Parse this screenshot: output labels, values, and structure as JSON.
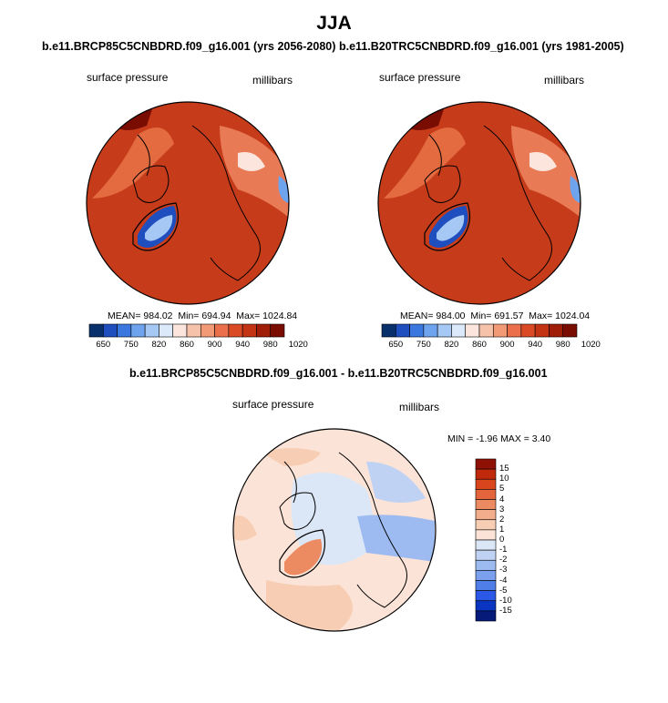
{
  "figure_title": "JJA",
  "panels": [
    {
      "title": "b.e11.BRCP85C5CNBDRD.f09_g16.001 (yrs 2056-2080)",
      "left_label": "surface pressure",
      "right_label": "millibars",
      "mean_label": "MEAN= 984.02",
      "min_label": "Min= 694.94",
      "max_label": "Max= 1024.84"
    },
    {
      "title": "b.e11.B20TRC5CNBDRD.f09_g16.001 (yrs 1981-2005)",
      "left_label": "surface pressure",
      "right_label": "millibars",
      "mean_label": "MEAN= 984.00",
      "min_label": "Min= 691.57",
      "max_label": "Max= 1024.04"
    }
  ],
  "diff_panel": {
    "title": "b.e11.BRCP85C5CNBDRD.f09_g16.001 - b.e11.B20TRC5CNBDRD.f09_g16.001",
    "left_label": "surface pressure",
    "right_label": "millibars",
    "minmax_label": "MIN =  -1.96 MAX =   3.40"
  },
  "colors": {
    "abs_scale": [
      "#08306b",
      "#1f4fbf",
      "#3a78e0",
      "#6ea3ee",
      "#a6c8f5",
      "#dbe9fb",
      "#fbe5dc",
      "#f7c2aa",
      "#f29a76",
      "#ea6f4a",
      "#d94a25",
      "#c23414",
      "#a01e08",
      "#7a0d02"
    ],
    "diff_scale": [
      "#061a7a",
      "#0a35c0",
      "#2b58e6",
      "#4f7ee8",
      "#7aa0ee",
      "#9dbbf0",
      "#bfd2f3",
      "#dbe7f7",
      "#fbe4d7",
      "#f7cdb4",
      "#f2ad8c",
      "#ec8a62",
      "#e4653c",
      "#d9461d",
      "#c0290c",
      "#8f1105"
    ]
  },
  "chart_data": [
    {
      "type": "heatmap",
      "title": "b.e11.BRCP85C5CNBDRD.f09_g16.001 (yrs 2056-2080)",
      "variable": "surface pressure",
      "units": "millibars",
      "mean": 984.02,
      "min": 694.94,
      "max": 1024.84,
      "colorbar_ticks": [
        "650",
        "750",
        "820",
        "860",
        "900",
        "940",
        "980",
        "1020"
      ]
    },
    {
      "type": "heatmap",
      "title": "b.e11.B20TRC5CNBDRD.f09_g16.001 (yrs 1981-2005)",
      "variable": "surface pressure",
      "units": "millibars",
      "mean": 984.0,
      "min": 691.57,
      "max": 1024.04,
      "colorbar_ticks": [
        "650",
        "750",
        "820",
        "860",
        "900",
        "940",
        "980",
        "1020"
      ]
    },
    {
      "type": "heatmap",
      "title": "b.e11.BRCP85C5CNBDRD.f09_g16.001 - b.e11.B20TRC5CNBDRD.f09_g16.001",
      "variable": "surface pressure",
      "units": "millibars",
      "min": -1.96,
      "max": 3.4,
      "colorbar_ticks": [
        "15",
        "10",
        "5",
        "4",
        "3",
        "2",
        "1",
        "0",
        "-1",
        "-2",
        "-3",
        "-4",
        "-5",
        "-10",
        "-15"
      ]
    }
  ]
}
